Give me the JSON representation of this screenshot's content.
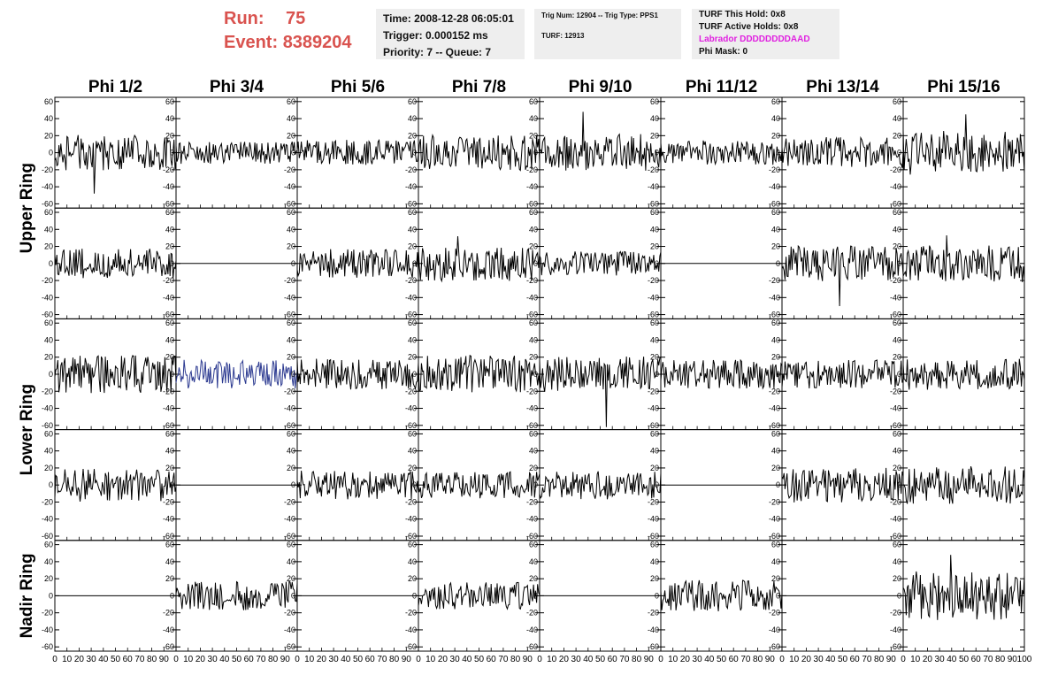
{
  "header": {
    "run_label": "Run:",
    "run_value": "75",
    "event_label": "Event:",
    "event_value": "8389204",
    "time_line": "Time: 2008-12-28 06:05:01",
    "trigger_line": "Trigger: 0.000152 ms",
    "priority_line": "Priority: 7 -- Queue: 7",
    "trig_line": "Trig Num: 12904 -- Trig Type: PPS1",
    "turf_line": "TURF: 12913",
    "turf_hold_line": "TURF This Hold: 0x8",
    "turf_active_line": "TURF Active Holds: 0x8",
    "labrador_line": "Labrador DDDDDDDDAAD",
    "phi_mask_line": "Phi Mask: 0",
    "run_color": "#d9534f",
    "labrador_color": "#e020e0"
  },
  "chart_data": {
    "type": "line",
    "columns": [
      "Phi 1/2",
      "Phi 3/4",
      "Phi 5/6",
      "Phi 7/8",
      "Phi 9/10",
      "Phi 11/12",
      "Phi 13/14",
      "Phi 15/16"
    ],
    "ring_labels": [
      {
        "label": "Upper Ring",
        "rows": [
          0,
          1
        ]
      },
      {
        "label": "Lower Ring",
        "rows": [
          2,
          3
        ]
      },
      {
        "label": "Nadir Ring",
        "rows": [
          4
        ]
      }
    ],
    "rows": 5,
    "xlim": [
      0,
      100
    ],
    "ylim": [
      -65,
      65
    ],
    "y_ticks": [
      -60,
      -40,
      -20,
      0,
      20,
      40,
      60
    ],
    "x_ticks": [
      0,
      10,
      20,
      30,
      40,
      50,
      60,
      70,
      80,
      90,
      100
    ],
    "x_axis_tick_labels": [
      "0",
      "10",
      "20",
      "30",
      "40",
      "50",
      "60",
      "70",
      "80",
      "90",
      "100"
    ],
    "line_color": "#000000",
    "highlight_color": "#2b3990",
    "grid": false,
    "waveforms": [
      [
        {
          "amp": 16,
          "flat": false,
          "seed": 11,
          "spike": -48
        },
        {
          "amp": 10,
          "flat": false,
          "seed": 12
        },
        {
          "amp": 12,
          "flat": false,
          "seed": 13
        },
        {
          "amp": 16,
          "flat": false,
          "seed": 14
        },
        {
          "amp": 17,
          "flat": false,
          "seed": 15,
          "spike": 48
        },
        {
          "amp": 11,
          "flat": false,
          "seed": 16
        },
        {
          "amp": 14,
          "flat": false,
          "seed": 17
        },
        {
          "amp": 20,
          "flat": false,
          "seed": 18,
          "spike": 45
        }
      ],
      [
        {
          "amp": 14,
          "flat": false,
          "seed": 21
        },
        {
          "amp": 0,
          "flat": true,
          "seed": 22
        },
        {
          "amp": 13,
          "flat": false,
          "seed": 23
        },
        {
          "amp": 16,
          "flat": false,
          "seed": 24,
          "spike": 32
        },
        {
          "amp": 11,
          "flat": false,
          "seed": 25
        },
        {
          "amp": 0,
          "flat": true,
          "seed": 26
        },
        {
          "amp": 16,
          "flat": false,
          "seed": 27,
          "spike": -50
        },
        {
          "amp": 17,
          "flat": false,
          "seed": 28,
          "spike": 33
        }
      ],
      [
        {
          "amp": 17,
          "flat": false,
          "seed": 31
        },
        {
          "amp": 13,
          "flat": false,
          "seed": 32,
          "highlight": true
        },
        {
          "amp": 14,
          "flat": false,
          "seed": 33
        },
        {
          "amp": 17,
          "flat": false,
          "seed": 34
        },
        {
          "amp": 16,
          "flat": false,
          "seed": 35,
          "spike": -62
        },
        {
          "amp": 13,
          "flat": false,
          "seed": 36
        },
        {
          "amp": 13,
          "flat": false,
          "seed": 37
        },
        {
          "amp": 14,
          "flat": false,
          "seed": 38
        }
      ],
      [
        {
          "amp": 15,
          "flat": false,
          "seed": 41
        },
        {
          "amp": 0,
          "flat": true,
          "seed": 42
        },
        {
          "amp": 13,
          "flat": false,
          "seed": 43
        },
        {
          "amp": 12,
          "flat": false,
          "seed": 44
        },
        {
          "amp": 13,
          "flat": false,
          "seed": 45
        },
        {
          "amp": 0,
          "flat": true,
          "seed": 46
        },
        {
          "amp": 16,
          "flat": false,
          "seed": 47
        },
        {
          "amp": 17,
          "flat": false,
          "seed": 48
        }
      ],
      [
        {
          "amp": 0,
          "flat": true,
          "seed": 51
        },
        {
          "amp": 13,
          "flat": false,
          "seed": 52
        },
        {
          "amp": 0,
          "flat": true,
          "seed": 53
        },
        {
          "amp": 12,
          "flat": false,
          "seed": 54
        },
        {
          "amp": 0,
          "flat": true,
          "seed": 55
        },
        {
          "amp": 14,
          "flat": false,
          "seed": 56
        },
        {
          "amp": 0,
          "flat": true,
          "seed": 57
        },
        {
          "amp": 22,
          "flat": false,
          "seed": 58,
          "spike": 48
        }
      ]
    ]
  }
}
